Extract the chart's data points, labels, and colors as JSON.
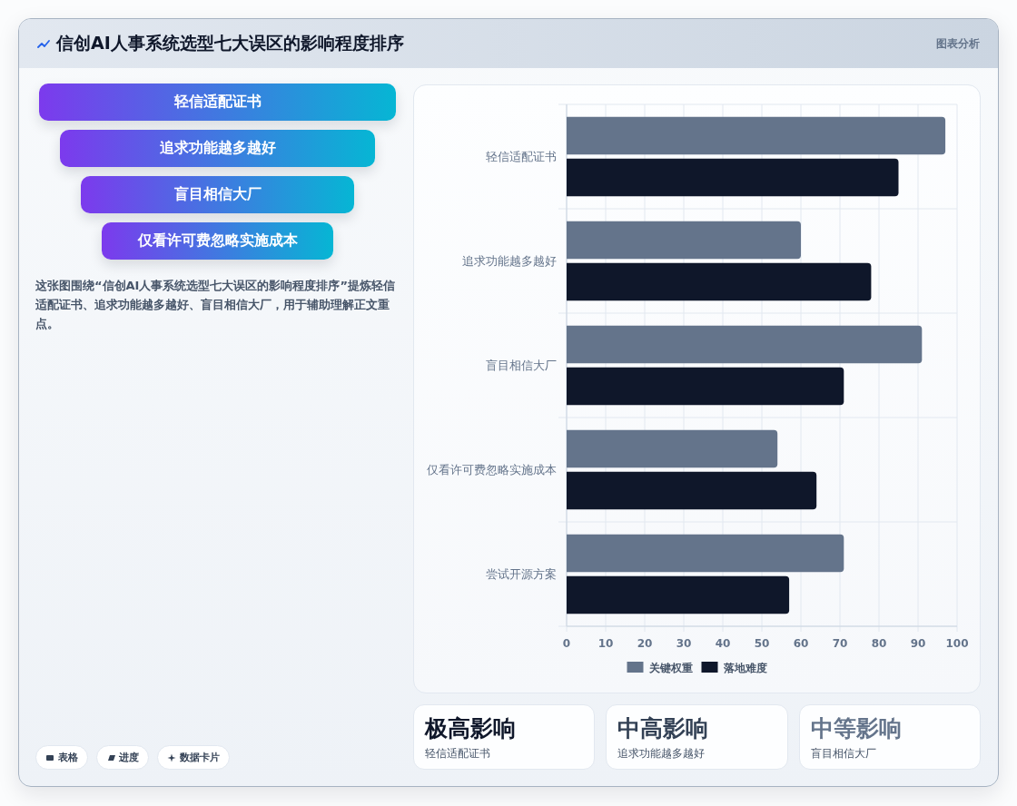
{
  "chart_data": [
    {
      "type": "other",
      "title": "信创AI人事系统选型七大误区的影响程度排序",
      "annotations": [
        "图表分析"
      ]
    },
    {
      "type": "other",
      "categories": [
        "轻信适配证书",
        "追求功能越多越好",
        "盲目相信大厂",
        "仅看许可费忽略实施成本"
      ],
      "annotations": [
        "这张图围绕“信创AI人事系统选型七大误区的影响程度排序”提炼轻信适配证书、追求功能越多越好、盲目相信大厂，用于辅助理解正文重点。",
        "表格",
        "进度",
        "数据卡片"
      ]
    },
    {
      "type": "bar",
      "orientation": "horizontal",
      "categories": [
        "轻信适配证书",
        "追求功能越多越好",
        "盲目相信大厂",
        "仅看许可费忽略实施成本",
        "尝试开源方案"
      ],
      "series": [
        {
          "name": "关键权重",
          "color": "#64748b",
          "values": [
            97,
            60,
            91,
            54,
            71
          ]
        },
        {
          "name": "落地难度",
          "color": "#0f172a",
          "values": [
            85,
            78,
            71,
            64,
            57
          ]
        }
      ],
      "xlim": [
        0,
        100
      ],
      "xticks": [
        0,
        10,
        20,
        30,
        40,
        50,
        60,
        70,
        80,
        90,
        100
      ],
      "grid": true,
      "legend": "bottom"
    },
    {
      "type": "other",
      "categories": [
        "极高影响",
        "中高影响",
        "中等影响"
      ],
      "annotations": [
        "轻信适配证书",
        "追求功能越多越好",
        "盲目相信大厂"
      ]
    }
  ]
}
